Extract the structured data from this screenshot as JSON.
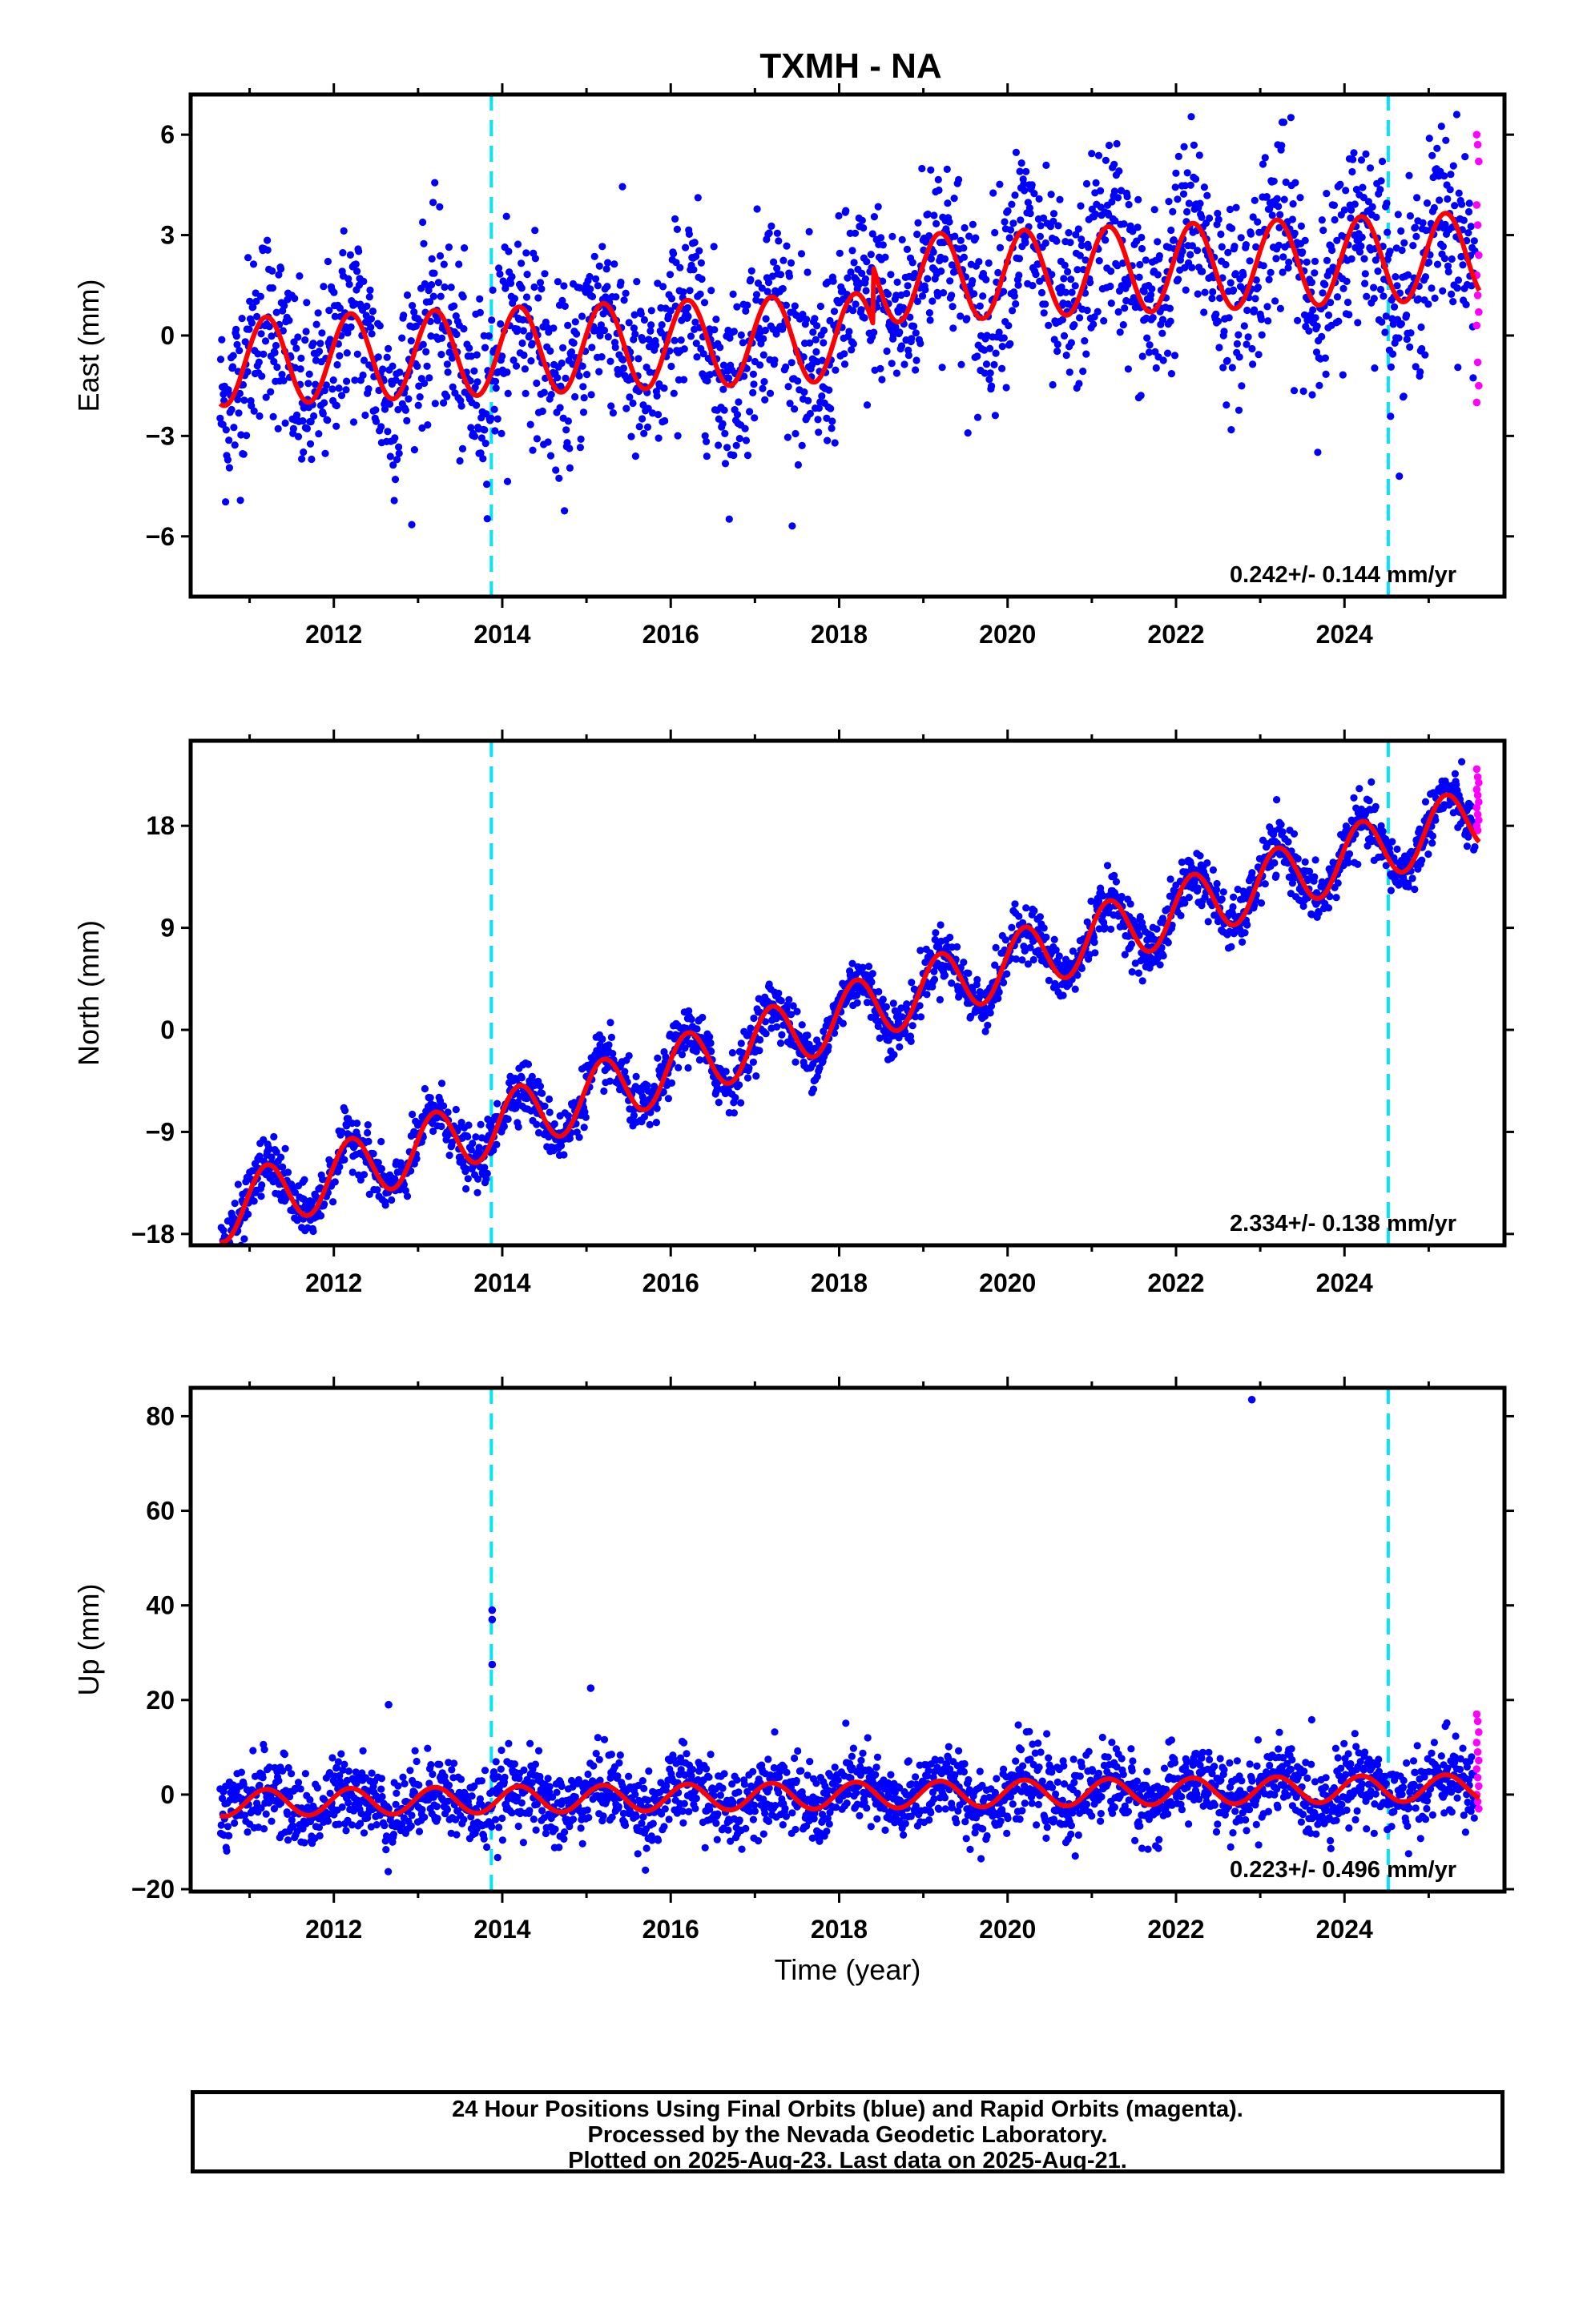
{
  "title": "TXMH - NA",
  "colors": {
    "final_orbits": "#0000ff",
    "rapid_orbits": "#ff00ff",
    "model": "#ff0000",
    "events": "#00e5ff",
    "frame": "#000000"
  },
  "footer": {
    "line1": "24 Hour Positions Using Final Orbits (blue) and Rapid Orbits (magenta).",
    "line2": "Processed by the Nevada Geodetic Laboratory.",
    "line3": "Plotted on 2025-Aug-23. Last data on 2025-Aug-21."
  },
  "chart_data": [
    {
      "type": "scatter",
      "name": "east",
      "ylabel": "East (mm)",
      "xlabel": "",
      "xlim": [
        2010.3,
        2025.9
      ],
      "ylim": [
        -7.8,
        7.2
      ],
      "yticks": [
        -6,
        -3,
        0,
        3,
        6
      ],
      "xticks": [
        2012,
        2014,
        2016,
        2018,
        2020,
        2022,
        2024
      ],
      "yticklabels": [
        "−6",
        "−3",
        "0",
        "3",
        "6"
      ],
      "xticklabels": [
        "2012",
        "2014",
        "2016",
        "2018",
        "2020",
        "2022",
        "2024"
      ],
      "rate_text": "0.242+/- 0.144 mm/yr",
      "trend": {
        "start": -0.8,
        "slope": 0.1,
        "step_year": 2018.4,
        "step_size": 1.7
      },
      "seasonal_amplitude": 1.3,
      "scatter_sd": 1.4,
      "event_lines": [
        2013.87,
        2024.52
      ],
      "data_start": 2010.65,
      "data_end": 2025.55,
      "rapid_values": [
        6.0,
        5.7,
        5.2,
        3.9,
        3.3,
        2.4,
        1.8,
        1.2,
        0.7,
        0.3,
        -0.8,
        -1.5,
        -2.0
      ]
    },
    {
      "type": "scatter",
      "name": "north",
      "ylabel": "North (mm)",
      "xlabel": "",
      "xlim": [
        2010.3,
        2025.9
      ],
      "ylim": [
        -19,
        25.5
      ],
      "yticks": [
        -18,
        -9,
        0,
        9,
        18
      ],
      "xticks": [
        2012,
        2014,
        2016,
        2018,
        2020,
        2022,
        2024
      ],
      "yticklabels": [
        "−18",
        "−9",
        "0",
        "9",
        "18"
      ],
      "xticklabels": [
        "2012",
        "2014",
        "2016",
        "2018",
        "2020",
        "2022",
        "2024"
      ],
      "rate_text": "2.334+/- 0.138 mm/yr",
      "trend": {
        "start": -16.0,
        "slope": 2.33,
        "step_year": 0,
        "step_size": 0
      },
      "seasonal_amplitude": 2.8,
      "scatter_sd": 1.2,
      "event_lines": [
        2013.87,
        2024.52
      ],
      "data_start": 2010.65,
      "data_end": 2025.55,
      "rapid_values": [
        23.0,
        22.3,
        21.8,
        21.2,
        20.7,
        20.1,
        19.6,
        19.0,
        18.5,
        18.0,
        17.6
      ]
    },
    {
      "type": "scatter",
      "name": "up",
      "ylabel": "Up (mm)",
      "xlabel": "Time (year)",
      "xlim": [
        2010.3,
        2025.9
      ],
      "ylim": [
        -20.5,
        86
      ],
      "yticks": [
        -20,
        0,
        20,
        40,
        60,
        80
      ],
      "xticks": [
        2012,
        2014,
        2016,
        2018,
        2020,
        2022,
        2024
      ],
      "yticklabels": [
        "−20",
        "0",
        "20",
        "40",
        "60",
        "80"
      ],
      "xticklabels": [
        "2012",
        "2014",
        "2016",
        "2018",
        "2020",
        "2022",
        "2024"
      ],
      "rate_text": "0.223+/- 0.496 mm/yr",
      "trend": {
        "start": -1.8,
        "slope": 0.22,
        "step_year": 0,
        "step_size": 0
      },
      "seasonal_amplitude": 2.8,
      "scatter_sd": 4.0,
      "event_lines": [
        2013.87,
        2024.52
      ],
      "data_start": 2010.65,
      "data_end": 2025.55,
      "outliers": [
        [
          2013.88,
          39
        ],
        [
          2013.88,
          37
        ],
        [
          2013.88,
          27.5
        ],
        [
          2015.05,
          22.5
        ],
        [
          2022.9,
          83.5
        ],
        [
          2012.65,
          19
        ]
      ],
      "rapid_values": [
        17.0,
        15.5,
        13.2,
        11.0,
        9.0,
        7.2,
        5.4,
        3.6,
        1.8,
        0.0,
        -1.5,
        -3.0
      ]
    }
  ]
}
